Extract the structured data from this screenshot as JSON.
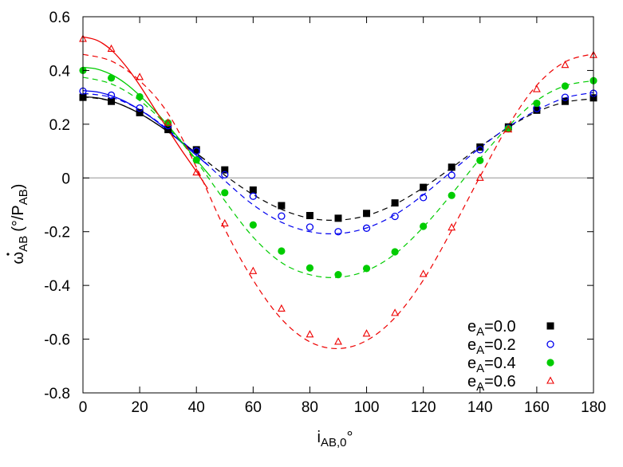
{
  "chart_data": {
    "type": "scatter",
    "xlabel": "i",
    "xlabel_sub": "AB,0",
    "xlabel_suffix": "°",
    "ylabel_symbol": "ω",
    "ylabel_sub": "AB",
    "ylabel_unit_open": "(°/P",
    "ylabel_unit_sub": "AB",
    "ylabel_unit_close": ")",
    "xlim": [
      0,
      180
    ],
    "ylim": [
      -0.8,
      0.6
    ],
    "xticks": [
      0,
      20,
      40,
      60,
      80,
      100,
      120,
      140,
      160,
      180
    ],
    "yticks": [
      -0.8,
      -0.6,
      -0.4,
      -0.2,
      0,
      0.2,
      0.4,
      0.6
    ],
    "xtick_labels": [
      "0",
      "20",
      "40",
      "60",
      "80",
      "100",
      "120",
      "140",
      "160",
      "180"
    ],
    "ytick_labels": [
      "-0.8",
      "-0.6",
      "-0.4",
      "-0.2",
      "0",
      "0.2",
      "0.4",
      "0.6"
    ],
    "zero_line": true,
    "grid": false,
    "legend_position": "bottom-right",
    "series": [
      {
        "name": "e",
        "name_sub": "A",
        "name_value": "=0.0",
        "color": "#000000",
        "marker": "square-filled",
        "points_x": [
          0,
          10,
          20,
          30,
          40,
          50,
          60,
          70,
          80,
          90,
          100,
          110,
          120,
          130,
          140,
          150,
          160,
          170,
          180
        ],
        "points_y": [
          0.3,
          0.285,
          0.243,
          0.18,
          0.105,
          0.03,
          -0.045,
          -0.103,
          -0.14,
          -0.15,
          -0.132,
          -0.093,
          -0.035,
          0.04,
          0.115,
          0.19,
          0.252,
          0.285,
          0.298
        ],
        "solid_x": [
          0,
          5,
          10,
          15,
          20,
          25,
          30,
          35,
          40,
          43
        ],
        "solid_y": [
          0.302,
          0.298,
          0.286,
          0.266,
          0.24,
          0.208,
          0.172,
          0.132,
          0.092,
          0.068
        ],
        "dashed_x": [
          0,
          10,
          20,
          30,
          40,
          50,
          60,
          70,
          80,
          90,
          100,
          110,
          120,
          130,
          140,
          150,
          160,
          170,
          180
        ],
        "dashed_y": [
          0.302,
          0.286,
          0.24,
          0.172,
          0.092,
          0.01,
          -0.062,
          -0.117,
          -0.15,
          -0.157,
          -0.14,
          -0.098,
          -0.036,
          0.038,
          0.116,
          0.188,
          0.246,
          0.282,
          0.295
        ]
      },
      {
        "name": "e",
        "name_sub": "A",
        "name_value": "=0.2",
        "color": "#0000ee",
        "marker": "circle-open",
        "points_x": [
          0,
          10,
          20,
          30,
          40,
          50,
          60,
          70,
          80,
          90,
          100,
          110,
          120,
          130,
          140,
          150,
          160,
          170,
          180
        ],
        "points_y": [
          0.323,
          0.308,
          0.26,
          0.195,
          0.1,
          0.012,
          -0.068,
          -0.142,
          -0.183,
          -0.2,
          -0.187,
          -0.143,
          -0.073,
          0.01,
          0.105,
          0.185,
          0.258,
          0.3,
          0.315
        ],
        "solid_x": [
          0,
          5,
          10,
          15,
          20,
          25,
          30,
          35,
          40,
          44
        ],
        "solid_y": [
          0.325,
          0.32,
          0.306,
          0.284,
          0.254,
          0.218,
          0.176,
          0.13,
          0.084,
          0.048
        ],
        "dashed_x": [
          0,
          10,
          20,
          30,
          40,
          50,
          60,
          70,
          80,
          90,
          100,
          110,
          120,
          130,
          140,
          150,
          160,
          170,
          180
        ],
        "dashed_y": [
          0.315,
          0.3,
          0.254,
          0.18,
          0.088,
          -0.01,
          -0.1,
          -0.165,
          -0.2,
          -0.207,
          -0.186,
          -0.137,
          -0.063,
          0.025,
          0.112,
          0.19,
          0.252,
          0.298,
          0.318
        ]
      },
      {
        "name": "e",
        "name_sub": "A",
        "name_value": "=0.4",
        "color": "#00cc00",
        "marker": "circle-filled",
        "points_x": [
          0,
          10,
          20,
          30,
          40,
          50,
          60,
          70,
          80,
          90,
          100,
          110,
          120,
          130,
          140,
          150,
          160,
          170,
          180
        ],
        "points_y": [
          0.4,
          0.372,
          0.302,
          0.205,
          0.067,
          -0.055,
          -0.175,
          -0.272,
          -0.335,
          -0.36,
          -0.337,
          -0.275,
          -0.18,
          -0.065,
          0.065,
          0.183,
          0.278,
          0.342,
          0.362
        ],
        "solid_x": [
          0,
          5,
          10,
          15,
          20,
          25,
          30,
          35,
          40,
          45
        ],
        "solid_y": [
          0.412,
          0.405,
          0.385,
          0.352,
          0.307,
          0.254,
          0.195,
          0.132,
          0.068,
          0.005
        ],
        "dashed_x": [
          0,
          10,
          20,
          30,
          40,
          50,
          60,
          70,
          80,
          90,
          100,
          110,
          120,
          130,
          140,
          150,
          160,
          170,
          180
        ],
        "dashed_y": [
          0.375,
          0.35,
          0.288,
          0.19,
          0.062,
          -0.085,
          -0.22,
          -0.315,
          -0.36,
          -0.37,
          -0.345,
          -0.283,
          -0.183,
          -0.06,
          0.072,
          0.192,
          0.288,
          0.343,
          0.362
        ]
      },
      {
        "name": "e",
        "name_sub": "A",
        "name_value": "=0.6",
        "color": "#ee0000",
        "marker": "triangle-open",
        "points_x": [
          0,
          10,
          20,
          30,
          40,
          50,
          60,
          70,
          80,
          90,
          100,
          110,
          120,
          130,
          140,
          150,
          160,
          170,
          180
        ],
        "points_y": [
          0.517,
          0.48,
          0.375,
          0.205,
          0.02,
          -0.17,
          -0.347,
          -0.487,
          -0.583,
          -0.61,
          -0.58,
          -0.503,
          -0.358,
          -0.185,
          0.0,
          0.18,
          0.33,
          0.42,
          0.457
        ],
        "solid_x": [
          0,
          5,
          10,
          15,
          20,
          25,
          30,
          35,
          40,
          44
        ],
        "solid_y": [
          0.525,
          0.512,
          0.476,
          0.418,
          0.345,
          0.262,
          0.18,
          0.1,
          0.024,
          -0.04
        ],
        "dashed_x": [
          0,
          10,
          20,
          30,
          40,
          50,
          60,
          70,
          80,
          90,
          100,
          110,
          120,
          130,
          140,
          150,
          160,
          170,
          180
        ],
        "dashed_y": [
          0.46,
          0.435,
          0.362,
          0.24,
          0.04,
          -0.19,
          -0.38,
          -0.525,
          -0.61,
          -0.635,
          -0.605,
          -0.52,
          -0.38,
          -0.195,
          0.005,
          0.195,
          0.345,
          0.432,
          0.462
        ]
      }
    ]
  }
}
